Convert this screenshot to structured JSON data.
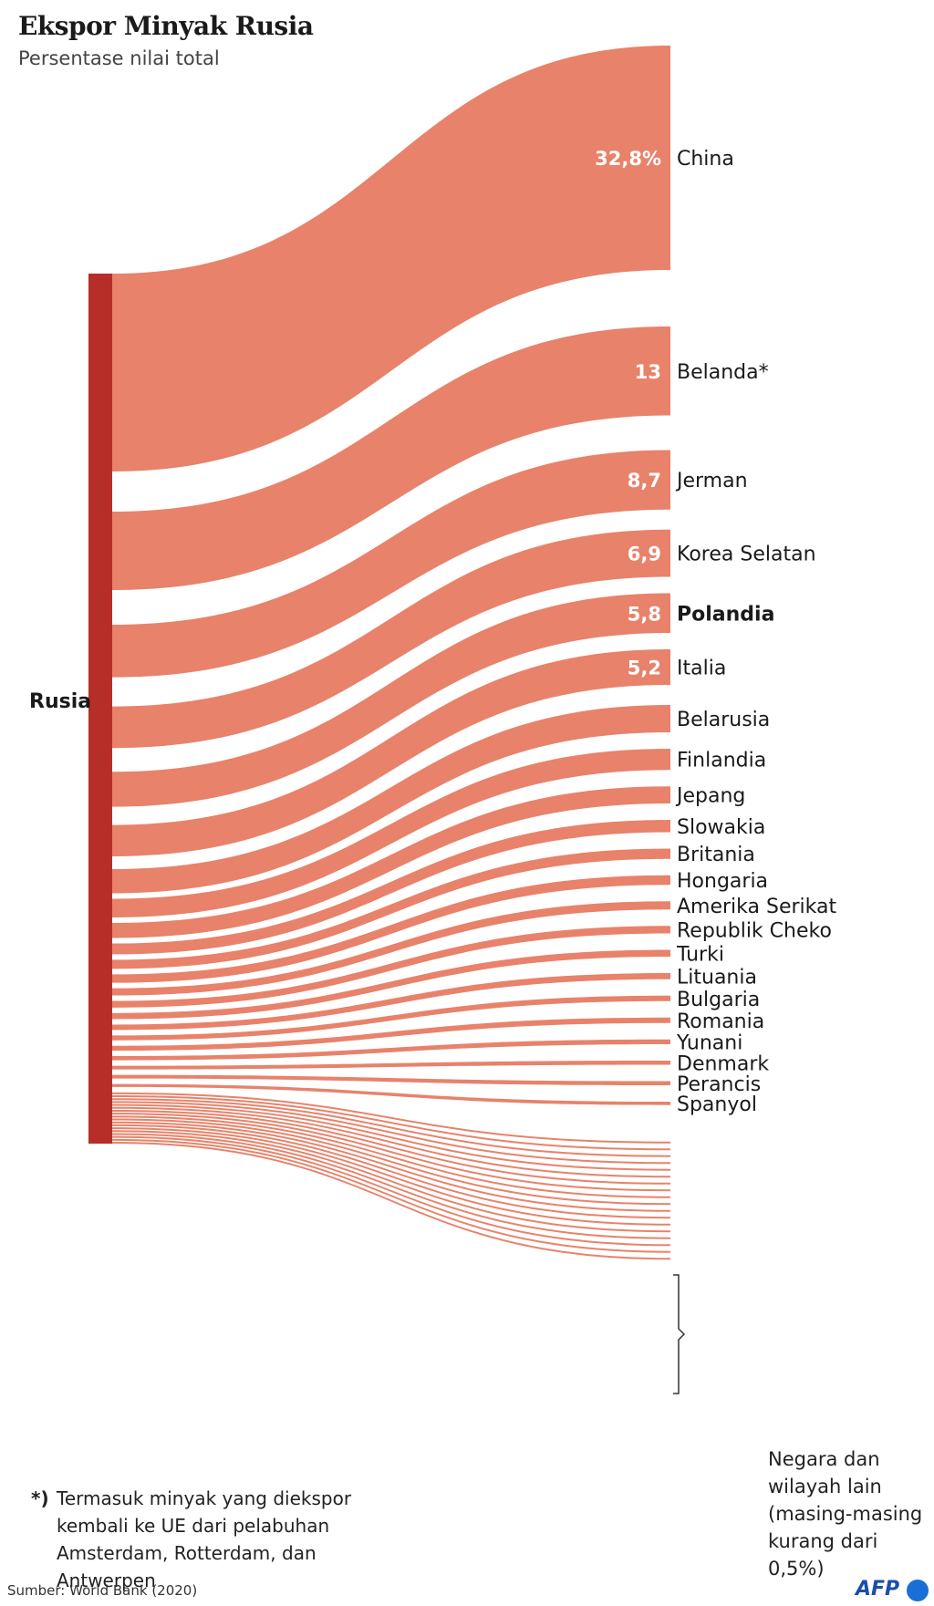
{
  "title": "Ekspor Minyak Rusia",
  "subtitle": "Persentase nilai total",
  "chart_data": {
    "type": "sankey",
    "source_label": "Rusia",
    "unit": "%",
    "flows": [
      {
        "name": "China",
        "value": 32.8,
        "label": "32,8%"
      },
      {
        "name": "Belanda*",
        "value": 13,
        "label": "13"
      },
      {
        "name": "Jerman",
        "value": 8.7,
        "label": "8,7"
      },
      {
        "name": "Korea Selatan",
        "value": 6.9,
        "label": "6,9"
      },
      {
        "name": "Polandia",
        "value": 5.8,
        "label": "5,8",
        "bold": true
      },
      {
        "name": "Italia",
        "value": 5.2,
        "label": "5,2"
      },
      {
        "name": "Belarusia",
        "value": 4.0,
        "label": ""
      },
      {
        "name": "Finlandia",
        "value": 3.1,
        "label": ""
      },
      {
        "name": "Jepang",
        "value": 2.5,
        "label": ""
      },
      {
        "name": "Slowakia",
        "value": 1.8,
        "label": ""
      },
      {
        "name": "Britania",
        "value": 1.5,
        "label": ""
      },
      {
        "name": "Hongaria",
        "value": 1.4,
        "label": ""
      },
      {
        "name": "Amerika Serikat",
        "value": 1.2,
        "label": ""
      },
      {
        "name": "Republik Cheko",
        "value": 1.1,
        "label": ""
      },
      {
        "name": "Turki",
        "value": 1.0,
        "label": ""
      },
      {
        "name": "Lituania",
        "value": 0.9,
        "label": ""
      },
      {
        "name": "Bulgaria",
        "value": 0.8,
        "label": ""
      },
      {
        "name": "Romania",
        "value": 0.8,
        "label": ""
      },
      {
        "name": "Yunani",
        "value": 0.7,
        "label": ""
      },
      {
        "name": "Denmark",
        "value": 0.6,
        "label": ""
      },
      {
        "name": "Perancis",
        "value": 0.6,
        "label": ""
      },
      {
        "name": "Spanyol",
        "value": 0.5,
        "label": ""
      }
    ],
    "other_flows_count": 18,
    "other_flow_value": 0.3,
    "other_label_lines": [
      "Negara dan",
      "wilayah lain",
      "(masing-masing",
      "kurang dari 0,5%)"
    ]
  },
  "footnote": {
    "mark": "*)",
    "text_lines": [
      "Termasuk minyak yang diekspor",
      "kembali ke UE dari pelabuhan",
      "Amsterdam, Rotterdam, dan Antwerpen"
    ]
  },
  "source_text": "Sumber: World Bank (2020)",
  "logo_text": "AFP",
  "colors": {
    "flow": "#e8826a",
    "source_bar": "#b72e29",
    "text": "#1a1a1a",
    "logo_dot": "#1a6fd6"
  }
}
